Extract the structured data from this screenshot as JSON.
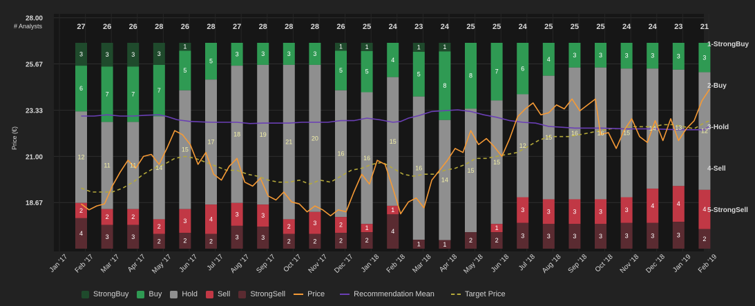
{
  "chart_data": {
    "type": "bar",
    "header_label": "# Analysts",
    "ylabel": "Price (€)",
    "ylim": [
      16.2,
      28.2
    ],
    "y_ticks": [
      "28.00",
      "25.67",
      "23.33",
      "21.00",
      "18.67"
    ],
    "y_tick_values": [
      28.0,
      25.67,
      23.33,
      21.0,
      18.67
    ],
    "right_ticks": [
      "1-StrongBuy",
      "2-Buy",
      "3-Hold",
      "4-Sell",
      "5-StrongSell"
    ],
    "x_ticks": [
      "Jan '17",
      "Feb '17",
      "Mar '17",
      "Apr '17",
      "May '17",
      "Jun '17",
      "Jul '17",
      "Aug '17",
      "Sep '17",
      "Oct '17",
      "Nov '17",
      "Dec '17",
      "Jan '18",
      "Feb '18",
      "Mar '18",
      "Apr '18",
      "May '18",
      "Jun '18",
      "Jul '18",
      "Aug '18",
      "Sep '18",
      "Oct '18",
      "Nov '18",
      "Dec '18",
      "Jan '19",
      "Feb '19"
    ],
    "analyst_counts": [
      27,
      26,
      26,
      28,
      26,
      28,
      27,
      28,
      28,
      28,
      26,
      25,
      24,
      23,
      24,
      25,
      25,
      24,
      25,
      25,
      25,
      24,
      24,
      23,
      21
    ],
    "series": [
      {
        "name": "StrongBuy",
        "color": "#1f4a2c",
        "values": [
          3,
          3,
          3,
          3,
          1,
          0,
          0,
          0,
          0,
          0,
          1,
          1,
          0,
          1,
          1,
          0,
          0,
          0,
          0,
          0,
          0,
          0,
          0,
          0,
          0
        ]
      },
      {
        "name": "Buy",
        "color": "#2f9a53",
        "values": [
          6,
          7,
          7,
          7,
          5,
          5,
          3,
          3,
          3,
          3,
          5,
          5,
          4,
          5,
          8,
          8,
          7,
          6,
          4,
          3,
          3,
          3,
          3,
          3,
          3
        ]
      },
      {
        "name": "Hold",
        "color": "#8f8f8f",
        "values": [
          12,
          11,
          11,
          14,
          15,
          17,
          18,
          19,
          21,
          20,
          16,
          16,
          15,
          16,
          14,
          15,
          15,
          12,
          15,
          16,
          16,
          15,
          14,
          13,
          12
        ]
      },
      {
        "name": "Sell",
        "color": "#c13845",
        "values": [
          2,
          2,
          2,
          2,
          3,
          4,
          3,
          3,
          2,
          3,
          2,
          1,
          1,
          0,
          0,
          0,
          1,
          3,
          3,
          3,
          3,
          3,
          4,
          4,
          4
        ]
      },
      {
        "name": "StrongSell",
        "color": "#5a2b31",
        "values": [
          4,
          3,
          3,
          2,
          2,
          2,
          3,
          3,
          2,
          2,
          2,
          2,
          4,
          1,
          1,
          2,
          2,
          3,
          3,
          3,
          3,
          3,
          3,
          3,
          2
        ]
      }
    ],
    "price_name": "Price",
    "price_color": "#f59a36",
    "price": [
      [
        0,
        18.6
      ],
      [
        0.3,
        18.3
      ],
      [
        0.6,
        18.5
      ],
      [
        0.9,
        18.6
      ],
      [
        1.2,
        19.5
      ],
      [
        1.5,
        20.2
      ],
      [
        1.8,
        20.8
      ],
      [
        2.1,
        20.4
      ],
      [
        2.4,
        21.0
      ],
      [
        2.7,
        21.1
      ],
      [
        3.0,
        20.6
      ],
      [
        3.3,
        21.4
      ],
      [
        3.6,
        22.3
      ],
      [
        3.9,
        22.1
      ],
      [
        4.2,
        21.6
      ],
      [
        4.5,
        20.6
      ],
      [
        4.8,
        21.2
      ],
      [
        5.1,
        20.1
      ],
      [
        5.4,
        19.8
      ],
      [
        5.7,
        20.5
      ],
      [
        6.0,
        20.9
      ],
      [
        6.3,
        19.7
      ],
      [
        6.6,
        19.5
      ],
      [
        6.9,
        19.9
      ],
      [
        7.2,
        19.0
      ],
      [
        7.5,
        18.8
      ],
      [
        7.8,
        19.2
      ],
      [
        8.1,
        18.7
      ],
      [
        8.4,
        18.6
      ],
      [
        8.7,
        18.2
      ],
      [
        9.0,
        18.5
      ],
      [
        9.3,
        18.3
      ],
      [
        9.6,
        18.0
      ],
      [
        9.9,
        18.3
      ],
      [
        10.2,
        18.2
      ],
      [
        10.5,
        19.2
      ],
      [
        10.8,
        20.1
      ],
      [
        11.1,
        19.6
      ],
      [
        11.4,
        20.8
      ],
      [
        11.7,
        20.6
      ],
      [
        12.0,
        19.4
      ],
      [
        12.3,
        18.1
      ],
      [
        12.6,
        18.7
      ],
      [
        12.9,
        18.9
      ],
      [
        13.2,
        18.4
      ],
      [
        13.5,
        19.8
      ],
      [
        13.8,
        20.3
      ],
      [
        14.1,
        20.8
      ],
      [
        14.4,
        21.4
      ],
      [
        14.7,
        21.2
      ],
      [
        15.0,
        22.3
      ],
      [
        15.3,
        21.6
      ],
      [
        15.6,
        21.9
      ],
      [
        15.9,
        21.5
      ],
      [
        16.2,
        21.0
      ],
      [
        16.5,
        21.9
      ],
      [
        16.8,
        23.0
      ],
      [
        17.1,
        23.4
      ],
      [
        17.4,
        23.7
      ],
      [
        17.7,
        23.1
      ],
      [
        18.0,
        23.2
      ],
      [
        18.3,
        23.6
      ],
      [
        18.6,
        23.4
      ],
      [
        18.9,
        23.9
      ],
      [
        19.2,
        23.3
      ],
      [
        19.5,
        23.6
      ],
      [
        19.8,
        23.9
      ],
      [
        20.0,
        22.1
      ],
      [
        20.3,
        22.2
      ],
      [
        20.6,
        21.4
      ],
      [
        20.9,
        22.3
      ],
      [
        21.2,
        22.9
      ],
      [
        21.5,
        22.0
      ],
      [
        21.8,
        21.7
      ],
      [
        22.1,
        22.8
      ],
      [
        22.4,
        21.8
      ],
      [
        22.7,
        22.9
      ],
      [
        23.0,
        21.8
      ],
      [
        23.3,
        22.4
      ],
      [
        23.6,
        22.8
      ],
      [
        23.9,
        23.8
      ],
      [
        24.2,
        24.4
      ]
    ],
    "rec_name": "Recommendation Mean",
    "rec_color": "#6a3fb5",
    "recommendation_mean": [
      [
        0,
        2.75
      ],
      [
        0.5,
        2.75
      ],
      [
        1.0,
        2.72
      ],
      [
        1.5,
        2.75
      ],
      [
        2.0,
        2.75
      ],
      [
        2.5,
        2.73
      ],
      [
        3.0,
        2.72
      ],
      [
        3.3,
        2.76
      ],
      [
        3.7,
        2.84
      ],
      [
        4.2,
        2.88
      ],
      [
        5.0,
        2.9
      ],
      [
        6.0,
        2.9
      ],
      [
        6.5,
        2.93
      ],
      [
        7.0,
        2.92
      ],
      [
        8.0,
        2.92
      ],
      [
        8.5,
        2.9
      ],
      [
        9.5,
        2.9
      ],
      [
        10.0,
        2.86
      ],
      [
        10.5,
        2.86
      ],
      [
        11.0,
        2.8
      ],
      [
        11.5,
        2.84
      ],
      [
        12.0,
        2.9
      ],
      [
        12.3,
        2.88
      ],
      [
        12.6,
        2.8
      ],
      [
        13.0,
        2.74
      ],
      [
        13.5,
        2.64
      ],
      [
        14.0,
        2.62
      ],
      [
        14.5,
        2.6
      ],
      [
        15.0,
        2.64
      ],
      [
        15.5,
        2.72
      ],
      [
        16.0,
        2.78
      ],
      [
        16.5,
        2.86
      ],
      [
        17.0,
        2.9
      ],
      [
        17.5,
        2.92
      ],
      [
        18.0,
        3.0
      ],
      [
        18.5,
        3.02
      ],
      [
        19.0,
        3.04
      ],
      [
        20.0,
        3.04
      ],
      [
        21.0,
        3.06
      ],
      [
        22.0,
        3.06
      ],
      [
        23.0,
        3.08
      ],
      [
        24.0,
        3.08
      ],
      [
        24.2,
        3.0
      ]
    ],
    "target_name": "Target Price",
    "target_color": "#b5a93a",
    "target_price": [
      [
        0,
        19.4
      ],
      [
        0.4,
        19.2
      ],
      [
        0.8,
        19.2
      ],
      [
        1.2,
        19.2
      ],
      [
        1.6,
        19.4
      ],
      [
        2.0,
        19.7
      ],
      [
        2.4,
        20.1
      ],
      [
        2.8,
        20.4
      ],
      [
        3.2,
        20.6
      ],
      [
        3.6,
        20.9
      ],
      [
        4.0,
        21.0
      ],
      [
        4.4,
        20.9
      ],
      [
        4.8,
        20.7
      ],
      [
        5.2,
        20.5
      ],
      [
        5.6,
        20.3
      ],
      [
        6.0,
        20.3
      ],
      [
        6.4,
        20.1
      ],
      [
        6.8,
        20.0
      ],
      [
        7.2,
        19.8
      ],
      [
        7.6,
        19.7
      ],
      [
        8.0,
        19.7
      ],
      [
        8.4,
        19.8
      ],
      [
        8.8,
        19.6
      ],
      [
        9.2,
        19.8
      ],
      [
        9.6,
        19.7
      ],
      [
        10.0,
        20.0
      ],
      [
        10.4,
        20.3
      ],
      [
        10.8,
        20.4
      ],
      [
        11.2,
        20.6
      ],
      [
        11.6,
        20.7
      ],
      [
        12.0,
        20.4
      ],
      [
        12.4,
        20.1
      ],
      [
        12.8,
        20.0
      ],
      [
        13.2,
        20.1
      ],
      [
        13.6,
        20.1
      ],
      [
        14.0,
        20.3
      ],
      [
        14.4,
        20.4
      ],
      [
        14.8,
        20.6
      ],
      [
        15.2,
        20.9
      ],
      [
        15.6,
        20.9
      ],
      [
        16.0,
        21.0
      ],
      [
        16.4,
        21.1
      ],
      [
        16.8,
        21.2
      ],
      [
        17.2,
        21.5
      ],
      [
        17.6,
        21.8
      ],
      [
        18.0,
        22.0
      ],
      [
        18.4,
        22.0
      ],
      [
        18.8,
        22.0
      ],
      [
        19.2,
        22.1
      ],
      [
        19.6,
        22.2
      ],
      [
        20.0,
        22.3
      ],
      [
        20.4,
        22.4
      ],
      [
        20.8,
        22.4
      ],
      [
        21.2,
        22.5
      ],
      [
        21.6,
        22.5
      ],
      [
        22.0,
        22.5
      ],
      [
        22.4,
        22.6
      ],
      [
        22.8,
        22.6
      ],
      [
        23.2,
        22.5
      ],
      [
        23.6,
        22.4
      ],
      [
        24.0,
        22.7
      ],
      [
        24.2,
        22.8
      ]
    ],
    "legend_position": "bottom",
    "grid": true
  }
}
